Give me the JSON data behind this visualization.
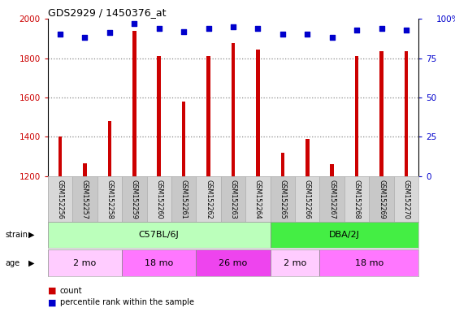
{
  "title": "GDS2929 / 1450376_at",
  "samples": [
    "GSM152256",
    "GSM152257",
    "GSM152258",
    "GSM152259",
    "GSM152260",
    "GSM152261",
    "GSM152262",
    "GSM152263",
    "GSM152264",
    "GSM152265",
    "GSM152266",
    "GSM152267",
    "GSM152268",
    "GSM152269",
    "GSM152270"
  ],
  "counts": [
    1400,
    1265,
    1480,
    1940,
    1810,
    1580,
    1810,
    1875,
    1845,
    1320,
    1390,
    1260,
    1810,
    1835,
    1835
  ],
  "percentile_ranks": [
    90,
    88,
    91,
    97,
    94,
    92,
    94,
    95,
    94,
    90,
    90,
    88,
    93,
    94,
    93
  ],
  "bar_color": "#cc0000",
  "dot_color": "#0000cc",
  "ylim_left": [
    1200,
    2000
  ],
  "ylim_right": [
    0,
    100
  ],
  "yticks_left": [
    1200,
    1400,
    1600,
    1800,
    2000
  ],
  "yticks_right": [
    0,
    25,
    50,
    75,
    100
  ],
  "grid_color": "#888888",
  "strain_groups": [
    {
      "label": "C57BL/6J",
      "start": 0,
      "end": 9,
      "color": "#bbffbb"
    },
    {
      "label": "DBA/2J",
      "start": 9,
      "end": 15,
      "color": "#44ee44"
    }
  ],
  "age_groups": [
    {
      "label": "2 mo",
      "start": 0,
      "end": 3,
      "color": "#ffccff"
    },
    {
      "label": "18 mo",
      "start": 3,
      "end": 6,
      "color": "#ff77ff"
    },
    {
      "label": "26 mo",
      "start": 6,
      "end": 9,
      "color": "#ee44ee"
    },
    {
      "label": "2 mo",
      "start": 9,
      "end": 11,
      "color": "#ffccff"
    },
    {
      "label": "18 mo",
      "start": 11,
      "end": 15,
      "color": "#ff77ff"
    }
  ],
  "legend_count_color": "#cc0000",
  "legend_dot_color": "#0000cc",
  "tick_area_color": "#cccccc"
}
